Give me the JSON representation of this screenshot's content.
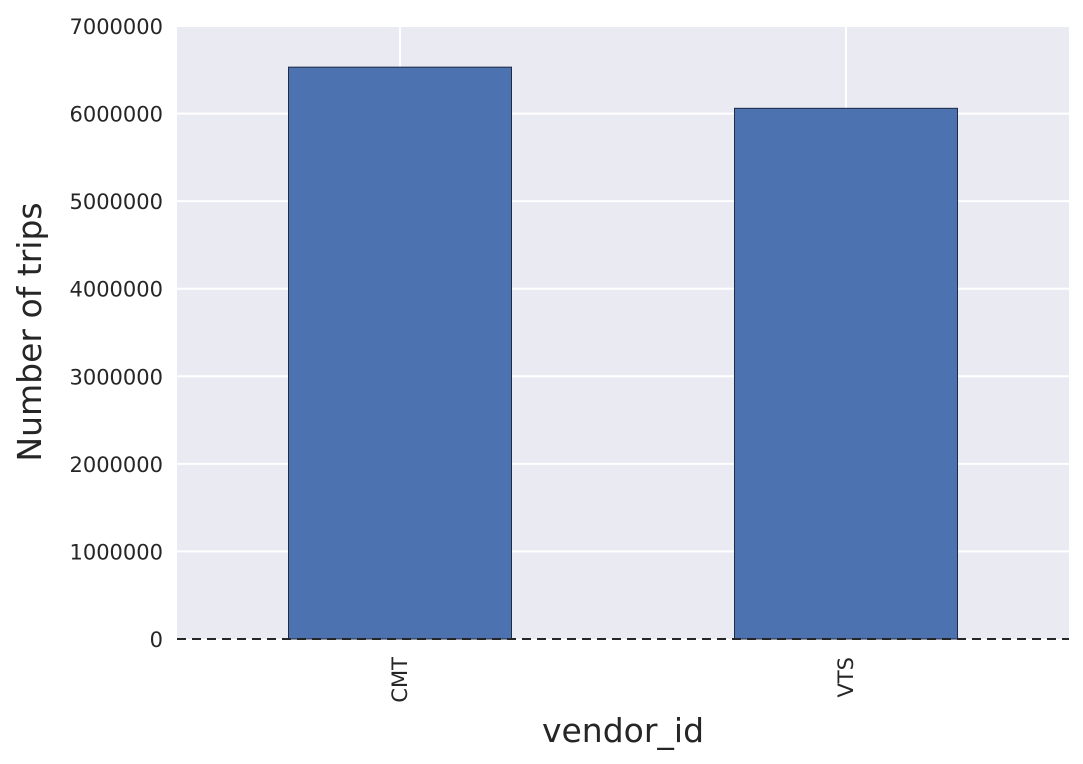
{
  "chart_data": {
    "type": "bar",
    "categories": [
      "CMT",
      "VTS"
    ],
    "values": [
      6530000,
      6060000
    ],
    "xlabel": "vendor_id",
    "ylabel": "Number of trips",
    "ylim": [
      0,
      7000000
    ],
    "yticks": [
      "0",
      "1000000",
      "2000000",
      "3000000",
      "4000000",
      "5000000",
      "6000000",
      "7000000"
    ],
    "grid": true,
    "baseline_style": "dashed",
    "colors": {
      "bar": "#4c72b0",
      "plot_background": "#eaeaf2",
      "grid": "#ffffff",
      "text": "#262626"
    }
  }
}
